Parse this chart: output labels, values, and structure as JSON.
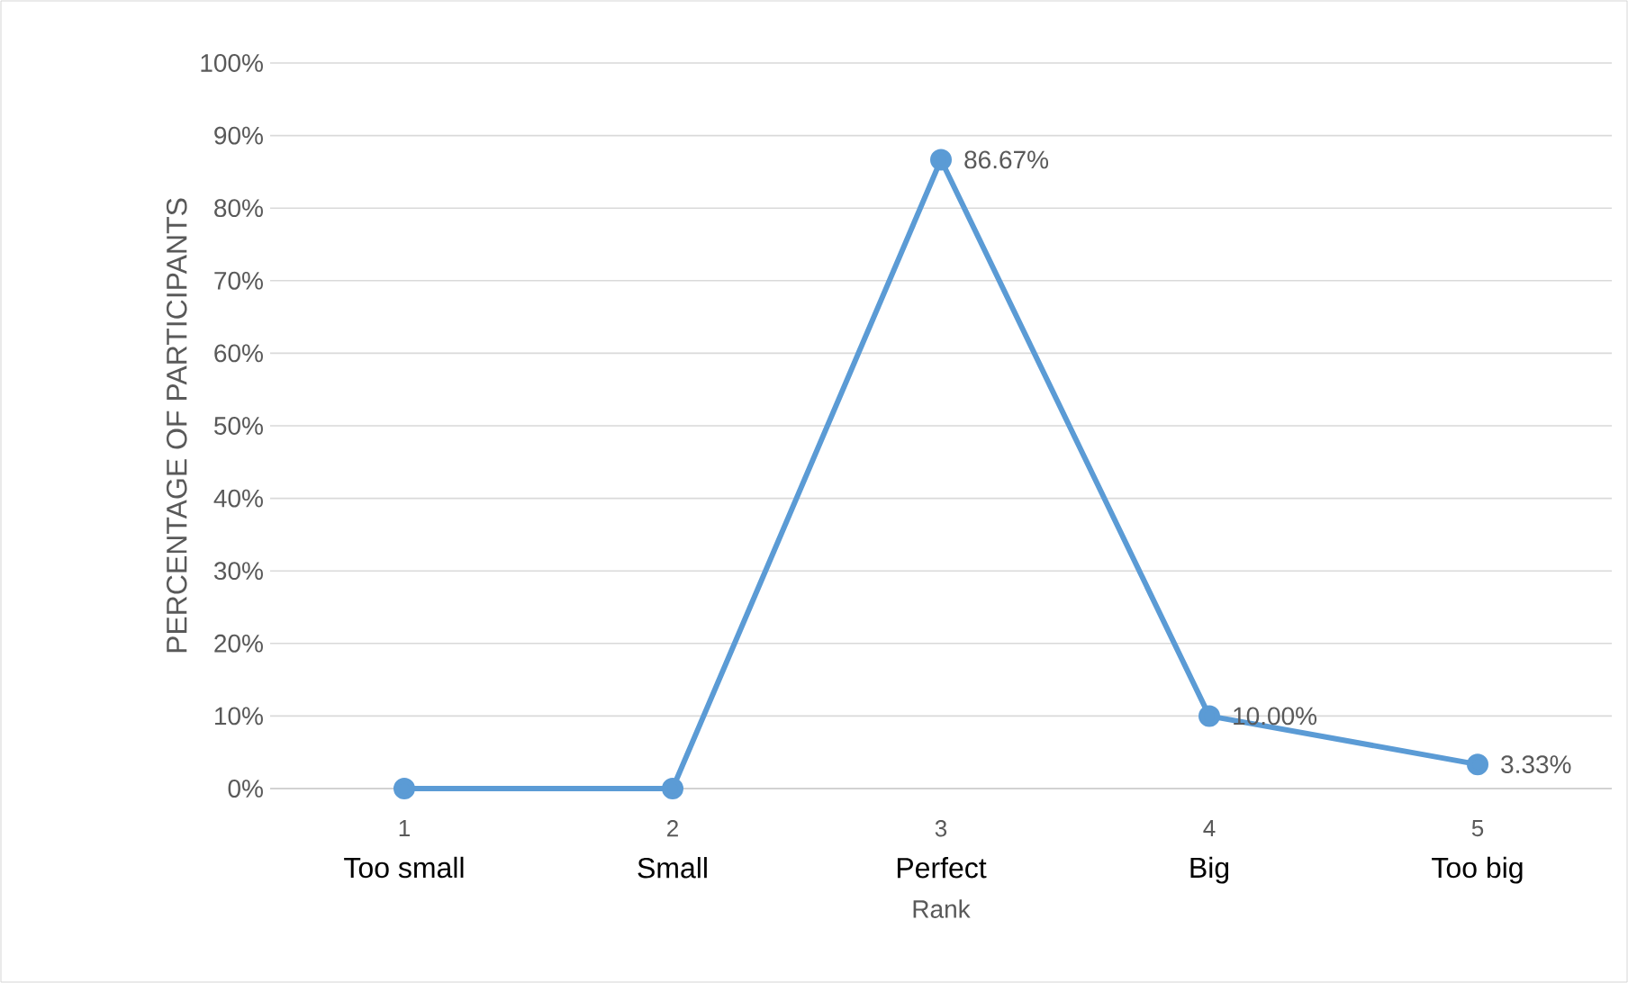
{
  "chart_data": {
    "type": "line",
    "xlabel": "Rank",
    "ylabel": "PERCENTAGE OF PARTICIPANTS",
    "categories": [
      "1",
      "2",
      "3",
      "4",
      "5"
    ],
    "annotations": [
      "Too small",
      "Small",
      "Perfect",
      "Big",
      "Too big"
    ],
    "series": [
      {
        "color": "#5b9bd5",
        "values": [
          0,
          0,
          86.67,
          10.0,
          3.33
        ],
        "value_labels": [
          null,
          null,
          "86.67%",
          "10.00%",
          "3.33%"
        ]
      }
    ],
    "ylim": [
      0,
      100
    ],
    "yticks": [
      {
        "value": 0,
        "label": "0%"
      },
      {
        "value": 10,
        "label": "10%"
      },
      {
        "value": 20,
        "label": "20%"
      },
      {
        "value": 30,
        "label": "30%"
      },
      {
        "value": 40,
        "label": "40%"
      },
      {
        "value": 50,
        "label": "50%"
      },
      {
        "value": 60,
        "label": "60%"
      },
      {
        "value": 70,
        "label": "70%"
      },
      {
        "value": 80,
        "label": "80%"
      },
      {
        "value": 90,
        "label": "90%"
      },
      {
        "value": 100,
        "label": "100%"
      }
    ],
    "grid": "y",
    "marker": "circle",
    "line_style": "solid"
  }
}
